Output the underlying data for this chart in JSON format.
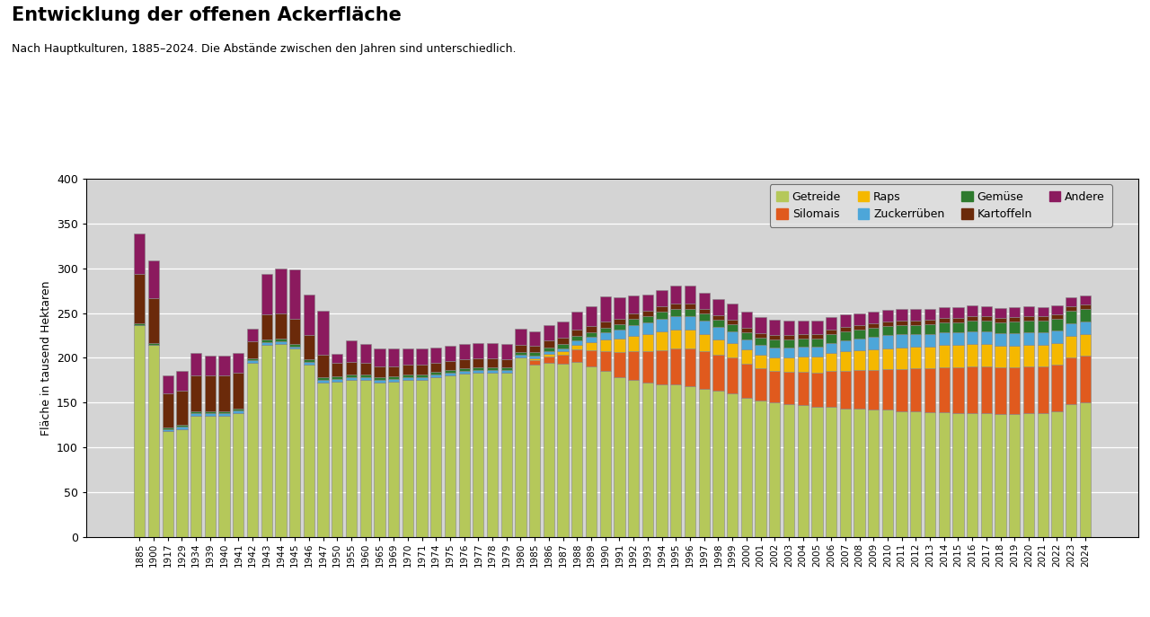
{
  "title": "Entwicklung der offenen Ackerfläche",
  "subtitle": "Nach Hauptkulturen, 1885–2024. Die Abstände zwischen den Jahren sind unterschiedlich.",
  "ylabel": "Fläche in tausend Hektaren",
  "ylim": [
    0,
    400
  ],
  "yticks": [
    0,
    50,
    100,
    150,
    200,
    250,
    300,
    350,
    400
  ],
  "legend_labels": [
    "Getreide",
    "Silomais",
    "Raps",
    "Zuckerrüben",
    "Gemüse",
    "Kartoffeln",
    "Andere"
  ],
  "colors": {
    "Getreide": "#b5c85a",
    "Silomais": "#e05a1e",
    "Raps": "#f5b800",
    "Zuckerrüben": "#4da6d9",
    "Gemüse": "#2d7a2d",
    "Kartoffeln": "#6b2a0a",
    "Andere": "#8b1a5e"
  },
  "years": [
    1885,
    1900,
    1917,
    1929,
    1934,
    1939,
    1940,
    1941,
    1942,
    1943,
    1944,
    1945,
    1946,
    1947,
    1950,
    1955,
    1960,
    1965,
    1969,
    1970,
    1971,
    1974,
    1975,
    1976,
    1977,
    1978,
    1979,
    1980,
    1985,
    1986,
    1987,
    1988,
    1989,
    1990,
    1991,
    1992,
    1993,
    1994,
    1995,
    1996,
    1997,
    1998,
    1999,
    2000,
    2001,
    2002,
    2003,
    2004,
    2005,
    2006,
    2007,
    2008,
    2009,
    2010,
    2011,
    2012,
    2013,
    2014,
    2015,
    2016,
    2017,
    2018,
    2019,
    2020,
    2021,
    2022,
    2023,
    2024
  ],
  "data": {
    "Getreide": [
      237,
      215,
      118,
      120,
      135,
      135,
      135,
      138,
      194,
      215,
      216,
      210,
      192,
      172,
      173,
      175,
      175,
      172,
      173,
      175,
      175,
      178,
      180,
      182,
      183,
      183,
      183,
      200,
      192,
      194,
      193,
      195,
      190,
      185,
      178,
      175,
      172,
      170,
      170,
      168,
      165,
      163,
      160,
      155,
      152,
      150,
      148,
      147,
      145,
      145,
      143,
      143,
      142,
      142,
      140,
      140,
      139,
      139,
      138,
      138,
      138,
      137,
      137,
      138,
      138,
      140,
      148,
      150
    ],
    "Silomais": [
      0,
      0,
      0,
      0,
      0,
      0,
      0,
      0,
      0,
      0,
      0,
      0,
      0,
      0,
      0,
      0,
      0,
      0,
      0,
      0,
      0,
      0,
      0,
      0,
      0,
      0,
      0,
      0,
      5,
      7,
      10,
      14,
      18,
      22,
      28,
      32,
      35,
      38,
      40,
      42,
      42,
      40,
      40,
      38,
      36,
      35,
      36,
      37,
      38,
      40,
      42,
      43,
      44,
      45,
      47,
      48,
      49,
      50,
      51,
      52,
      52,
      52,
      52,
      52,
      52,
      52,
      52,
      52
    ],
    "Raps": [
      0,
      0,
      0,
      0,
      0,
      0,
      0,
      0,
      0,
      0,
      0,
      0,
      0,
      0,
      0,
      0,
      0,
      0,
      0,
      0,
      0,
      0,
      0,
      0,
      0,
      0,
      0,
      0,
      2,
      3,
      4,
      6,
      10,
      14,
      16,
      18,
      20,
      22,
      22,
      22,
      20,
      18,
      17,
      16,
      15,
      15,
      16,
      17,
      18,
      20,
      22,
      22,
      23,
      24,
      25,
      25,
      25,
      26,
      26,
      26,
      26,
      25,
      25,
      25,
      25,
      25,
      25,
      25
    ],
    "Zuckerrüben": [
      0,
      0,
      2,
      3,
      3,
      3,
      3,
      3,
      3,
      3,
      3,
      3,
      3,
      3,
      3,
      3,
      3,
      3,
      3,
      3,
      3,
      3,
      3,
      3,
      3,
      3,
      3,
      3,
      3,
      3,
      4,
      5,
      6,
      8,
      10,
      12,
      13,
      14,
      15,
      15,
      15,
      14,
      13,
      12,
      12,
      12,
      12,
      12,
      12,
      12,
      13,
      14,
      15,
      15,
      15,
      14,
      14,
      14,
      14,
      14,
      14,
      14,
      14,
      14,
      14,
      14,
      14,
      14
    ],
    "Gemüse": [
      2,
      2,
      2,
      2,
      2,
      2,
      2,
      2,
      2,
      3,
      3,
      3,
      3,
      3,
      3,
      3,
      3,
      3,
      3,
      3,
      3,
      3,
      3,
      3,
      3,
      3,
      3,
      3,
      4,
      5,
      5,
      5,
      5,
      5,
      6,
      7,
      7,
      8,
      8,
      8,
      8,
      8,
      8,
      8,
      8,
      9,
      9,
      9,
      9,
      10,
      10,
      10,
      10,
      10,
      10,
      10,
      11,
      11,
      11,
      12,
      12,
      12,
      13,
      13,
      13,
      13,
      14,
      14
    ],
    "Kartoffeln": [
      55,
      50,
      38,
      38,
      40,
      40,
      40,
      40,
      20,
      28,
      28,
      28,
      28,
      25,
      15,
      14,
      13,
      12,
      11,
      11,
      11,
      10,
      10,
      10,
      10,
      10,
      9,
      9,
      8,
      8,
      7,
      7,
      7,
      7,
      6,
      6,
      6,
      6,
      6,
      6,
      5,
      5,
      5,
      5,
      5,
      5,
      5,
      5,
      5,
      5,
      5,
      5,
      5,
      5,
      5,
      5,
      5,
      5,
      5,
      5,
      5,
      5,
      5,
      5,
      5,
      5,
      5,
      5
    ],
    "Andere": [
      45,
      42,
      20,
      22,
      25,
      22,
      22,
      22,
      14,
      45,
      50,
      55,
      45,
      50,
      10,
      25,
      22,
      20,
      20,
      18,
      18,
      18,
      18,
      18,
      18,
      18,
      18,
      18,
      16,
      17,
      18,
      20,
      22,
      28,
      24,
      20,
      18,
      18,
      20,
      20,
      18,
      18,
      18,
      18,
      18,
      17,
      16,
      15,
      15,
      14,
      14,
      13,
      13,
      13,
      13,
      13,
      12,
      12,
      12,
      12,
      11,
      11,
      11,
      11,
      10,
      10,
      10,
      10
    ]
  },
  "background_color": "#d4d4d4",
  "bar_edge_color": "#888888",
  "bar_linewidth": 0.4
}
